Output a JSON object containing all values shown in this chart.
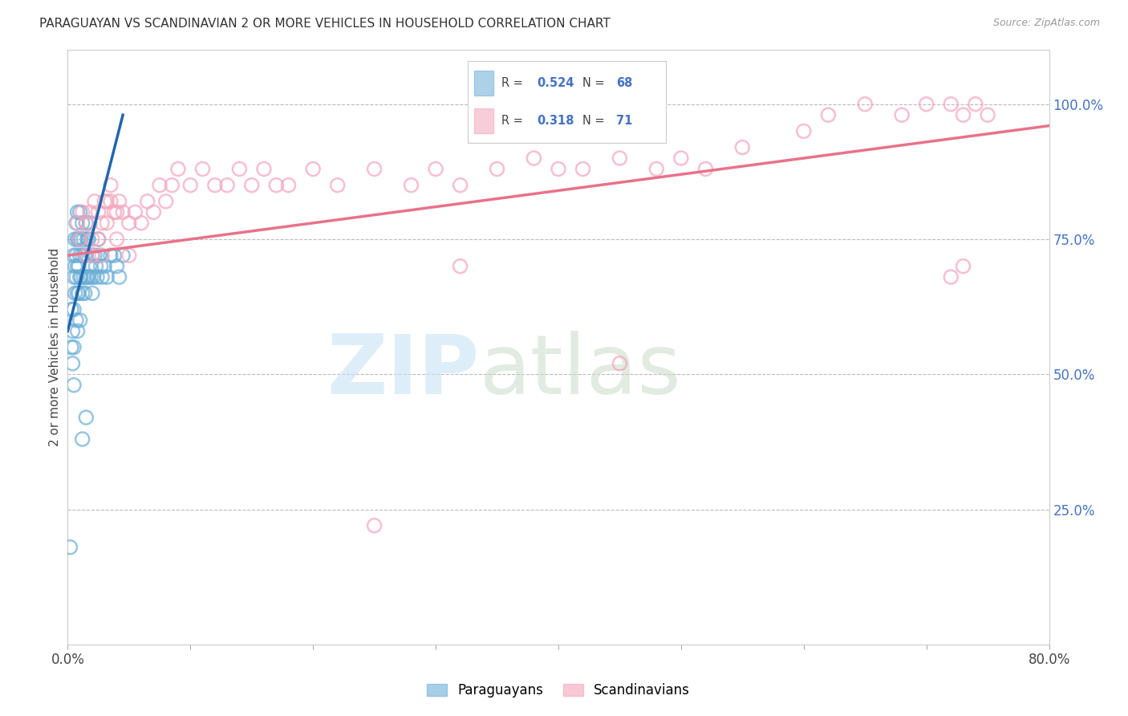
{
  "title": "PARAGUAYAN VS SCANDINAVIAN 2 OR MORE VEHICLES IN HOUSEHOLD CORRELATION CHART",
  "source": "Source: ZipAtlas.com",
  "ylabel": "2 or more Vehicles in Household",
  "xmin": 0.0,
  "xmax": 0.8,
  "ymin": 0.0,
  "ymax": 1.1,
  "x_tick_positions": [
    0.0,
    0.1,
    0.2,
    0.3,
    0.4,
    0.5,
    0.6,
    0.7,
    0.8
  ],
  "x_tick_labels": [
    "0.0%",
    "",
    "",
    "",
    "",
    "",
    "",
    "",
    "80.0%"
  ],
  "y_ticks_right": [
    0.25,
    0.5,
    0.75,
    1.0
  ],
  "y_tick_labels_right": [
    "25.0%",
    "50.0%",
    "75.0%",
    "100.0%"
  ],
  "paraguayan_R": 0.524,
  "paraguayan_N": 68,
  "scandinavian_R": 0.318,
  "scandinavian_N": 71,
  "paraguayan_color": "#6baed6",
  "scandinavian_color": "#f4a4bc",
  "trend_paraguayan_color": "#2166ac",
  "trend_scandinavian_color": "#e8728a",
  "legend_label_1": "Paraguayans",
  "legend_label_2": "Scandinavians",
  "paraguayan_x": [
    0.002,
    0.003,
    0.003,
    0.004,
    0.004,
    0.005,
    0.005,
    0.005,
    0.005,
    0.006,
    0.006,
    0.006,
    0.007,
    0.007,
    0.007,
    0.007,
    0.008,
    0.008,
    0.008,
    0.008,
    0.009,
    0.009,
    0.009,
    0.01,
    0.01,
    0.01,
    0.01,
    0.01,
    0.011,
    0.011,
    0.012,
    0.012,
    0.012,
    0.013,
    0.013,
    0.014,
    0.014,
    0.015,
    0.015,
    0.015,
    0.016,
    0.016,
    0.017,
    0.017,
    0.018,
    0.018,
    0.019,
    0.02,
    0.02,
    0.021,
    0.022,
    0.023,
    0.024,
    0.025,
    0.026,
    0.027,
    0.028,
    0.03,
    0.032,
    0.035,
    0.038,
    0.04,
    0.042,
    0.045,
    0.005,
    0.008,
    0.012,
    0.015
  ],
  "paraguayan_y": [
    0.18,
    0.62,
    0.55,
    0.58,
    0.52,
    0.72,
    0.68,
    0.62,
    0.55,
    0.75,
    0.7,
    0.65,
    0.78,
    0.72,
    0.68,
    0.6,
    0.8,
    0.75,
    0.7,
    0.65,
    0.75,
    0.7,
    0.65,
    0.8,
    0.75,
    0.72,
    0.68,
    0.6,
    0.75,
    0.68,
    0.78,
    0.72,
    0.65,
    0.75,
    0.68,
    0.72,
    0.65,
    0.78,
    0.72,
    0.68,
    0.75,
    0.68,
    0.75,
    0.68,
    0.78,
    0.7,
    0.68,
    0.72,
    0.65,
    0.68,
    0.72,
    0.7,
    0.68,
    0.75,
    0.72,
    0.7,
    0.68,
    0.7,
    0.68,
    0.72,
    0.72,
    0.7,
    0.68,
    0.72,
    0.48,
    0.58,
    0.38,
    0.42
  ],
  "scandinavian_x": [
    0.008,
    0.01,
    0.012,
    0.015,
    0.015,
    0.018,
    0.02,
    0.02,
    0.022,
    0.025,
    0.025,
    0.028,
    0.028,
    0.03,
    0.032,
    0.032,
    0.035,
    0.035,
    0.038,
    0.04,
    0.04,
    0.042,
    0.045,
    0.05,
    0.05,
    0.055,
    0.06,
    0.065,
    0.07,
    0.075,
    0.08,
    0.085,
    0.09,
    0.1,
    0.11,
    0.12,
    0.13,
    0.14,
    0.15,
    0.16,
    0.17,
    0.18,
    0.2,
    0.22,
    0.25,
    0.28,
    0.3,
    0.32,
    0.35,
    0.38,
    0.4,
    0.42,
    0.45,
    0.48,
    0.5,
    0.52,
    0.55,
    0.6,
    0.62,
    0.65,
    0.68,
    0.7,
    0.72,
    0.73,
    0.74,
    0.75,
    0.72,
    0.73,
    0.32,
    0.45,
    0.25
  ],
  "scandinavian_y": [
    0.78,
    0.75,
    0.8,
    0.78,
    0.72,
    0.8,
    0.75,
    0.72,
    0.82,
    0.8,
    0.75,
    0.78,
    0.72,
    0.82,
    0.82,
    0.78,
    0.85,
    0.82,
    0.8,
    0.8,
    0.75,
    0.82,
    0.8,
    0.78,
    0.72,
    0.8,
    0.78,
    0.82,
    0.8,
    0.85,
    0.82,
    0.85,
    0.88,
    0.85,
    0.88,
    0.85,
    0.85,
    0.88,
    0.85,
    0.88,
    0.85,
    0.85,
    0.88,
    0.85,
    0.88,
    0.85,
    0.88,
    0.85,
    0.88,
    0.9,
    0.88,
    0.88,
    0.9,
    0.88,
    0.9,
    0.88,
    0.92,
    0.95,
    0.98,
    1.0,
    0.98,
    1.0,
    1.0,
    0.98,
    1.0,
    0.98,
    0.68,
    0.7,
    0.7,
    0.52,
    0.22
  ],
  "trend_par_x0": 0.0,
  "trend_par_x1": 0.045,
  "trend_par_y0": 0.58,
  "trend_par_y1": 0.98,
  "trend_sca_x0": 0.0,
  "trend_sca_x1": 0.8,
  "trend_sca_y0": 0.72,
  "trend_sca_y1": 0.96
}
